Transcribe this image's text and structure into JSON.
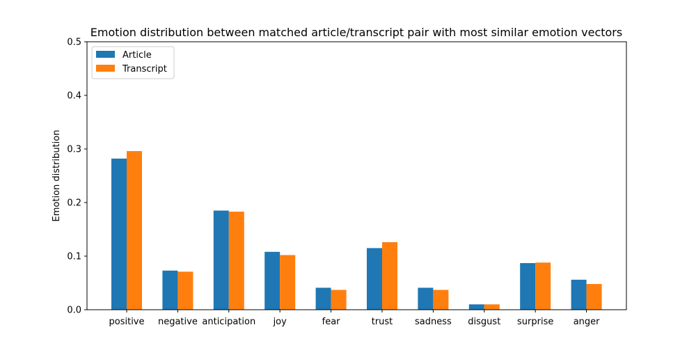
{
  "chart_data": {
    "type": "bar",
    "title": "Emotion distribution between matched article/transcript pair with most similar emotion vectors",
    "xlabel": "",
    "ylabel": "Emotion distribution",
    "ylim": [
      0,
      0.5
    ],
    "yticks": [
      "0.0",
      "0.1",
      "0.2",
      "0.3",
      "0.4",
      "0.5"
    ],
    "grid": false,
    "legend_position": "top-left",
    "categories": [
      "positive",
      "negative",
      "anticipation",
      "joy",
      "fear",
      "trust",
      "sadness",
      "disgust",
      "surprise",
      "anger"
    ],
    "series": [
      {
        "name": "Article",
        "color": "#1f77b4",
        "values": [
          0.282,
          0.073,
          0.185,
          0.108,
          0.041,
          0.115,
          0.041,
          0.01,
          0.087,
          0.056
        ]
      },
      {
        "name": "Transcript",
        "color": "#ff7f0e",
        "values": [
          0.296,
          0.071,
          0.183,
          0.102,
          0.037,
          0.126,
          0.037,
          0.01,
          0.088,
          0.048
        ]
      }
    ]
  }
}
